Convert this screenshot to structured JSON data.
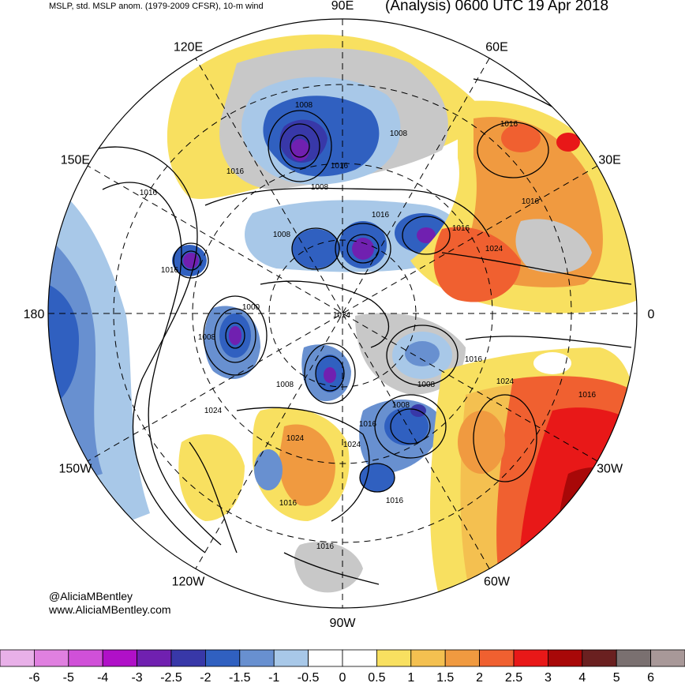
{
  "header": {
    "left_title": "MSLP, std. MSLP anom. (1979-2009 CFSR), 10-m wind",
    "right_title": "(Analysis) 0600 UTC 19 Apr 2018"
  },
  "credits": {
    "line1": "@AliciaMBentley",
    "line2": "www.AliciaMBentley.com"
  },
  "longitude_labels": [
    {
      "text": "90E",
      "deg": 90
    },
    {
      "text": "60E",
      "deg": 60
    },
    {
      "text": "30E",
      "deg": 30
    },
    {
      "text": "0",
      "deg": 0
    },
    {
      "text": "30W",
      "deg": -30
    },
    {
      "text": "60W",
      "deg": -60
    },
    {
      "text": "90W",
      "deg": -90
    },
    {
      "text": "120W",
      "deg": -120
    },
    {
      "text": "150W",
      "deg": -150
    },
    {
      "text": "180",
      "deg": 180
    },
    {
      "text": "150E",
      "deg": 150
    },
    {
      "text": "120E",
      "deg": 120
    }
  ],
  "isobar_labels": [
    "1008",
    "1008",
    "1016",
    "1008",
    "1016",
    "1016",
    "1016",
    "1008",
    "1016",
    "1024",
    "1024",
    "1000",
    "1008",
    "1016",
    "1008",
    "1024",
    "1024",
    "1016",
    "1008",
    "1016",
    "1024",
    "1016",
    "1016",
    "1016",
    "1016",
    "1016",
    "1008",
    "1024",
    "1016"
  ],
  "colorbar": {
    "colors": [
      "#e8b0e8",
      "#e080e0",
      "#d050d8",
      "#b010c8",
      "#7020b0",
      "#3838a8",
      "#3060c0",
      "#6890d0",
      "#a8c8e8",
      "#ffffff",
      "#ffffff",
      "#f8e060",
      "#f4c050",
      "#f09a40",
      "#f06030",
      "#e81818",
      "#a80808",
      "#6a2020",
      "#7a7070",
      "#a89898"
    ],
    "labels": [
      "-6",
      "-5",
      "-4",
      "-3",
      "-2.5",
      "-2",
      "-1.5",
      "-1",
      "-0.5",
      "0",
      "0.5",
      "1",
      "1.5",
      "2",
      "2.5",
      "3",
      "4",
      "5",
      "6"
    ]
  },
  "anomaly_fields": [
    {
      "name": "siberia-neg",
      "color": "#3060c0",
      "lon": 95,
      "r": 0.55
    },
    {
      "name": "arctic-neg",
      "color": "#6890d0",
      "lon": 40,
      "r": 0.1
    },
    {
      "name": "pacific-neg",
      "color": "#6890d0",
      "lon": 175,
      "r": 0.9
    },
    {
      "name": "canada-neg",
      "color": "#3060c0",
      "lon": -70,
      "r": 0.4
    },
    {
      "name": "europe-pos",
      "color": "#f06030",
      "lon": 20,
      "r": 0.55
    },
    {
      "name": "atlantic-pos",
      "color": "#e81818",
      "lon": -35,
      "r": 0.85
    },
    {
      "name": "eastasia-pos",
      "color": "#f8e060",
      "lon": 125,
      "r": 0.75
    },
    {
      "name": "usa-pos",
      "color": "#f09a40",
      "lon": -100,
      "r": 0.55
    }
  ]
}
